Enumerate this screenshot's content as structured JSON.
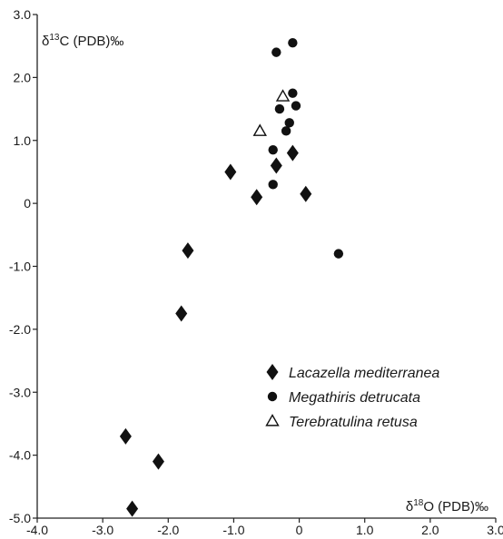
{
  "chart_data": {
    "type": "scatter",
    "xlabel": "δ¹⁸O (PDB)‰",
    "ylabel": "δ¹³C (PDB)‰",
    "xlim": [
      -4.0,
      3.0
    ],
    "ylim": [
      -5.0,
      3.0
    ],
    "xticks": [
      "-4.0",
      "-3.0",
      "-2.0",
      "-1.0",
      "0",
      "1.0",
      "2.0",
      "3.0"
    ],
    "yticks": [
      "-5.0",
      "-4.0",
      "-3.0",
      "-2.0",
      "-1.0",
      "0",
      "1.0",
      "2.0",
      "3.0"
    ],
    "grid": false,
    "legend_position": "bottom-right",
    "series": [
      {
        "name": "Lacazella mediterranea",
        "marker": "diamond-filled",
        "points": [
          [
            -1.05,
            0.5
          ],
          [
            -0.65,
            0.1
          ],
          [
            -0.35,
            0.6
          ],
          [
            -0.1,
            0.8
          ],
          [
            0.1,
            0.15
          ],
          [
            -1.7,
            -0.75
          ],
          [
            -1.8,
            -1.75
          ],
          [
            -2.65,
            -3.7
          ],
          [
            -2.15,
            -4.1
          ],
          [
            -2.55,
            -4.85
          ]
        ]
      },
      {
        "name": "Megathiris detrucata",
        "marker": "circle-filled",
        "points": [
          [
            -0.35,
            2.4
          ],
          [
            -0.1,
            2.55
          ],
          [
            -0.1,
            1.75
          ],
          [
            -0.3,
            1.5
          ],
          [
            -0.05,
            1.55
          ],
          [
            -0.15,
            1.28
          ],
          [
            -0.2,
            1.15
          ],
          [
            -0.4,
            0.85
          ],
          [
            -0.4,
            0.3
          ],
          [
            0.6,
            -0.8
          ]
        ]
      },
      {
        "name": "Terebratulina retusa",
        "marker": "triangle-open",
        "points": [
          [
            -0.25,
            1.7
          ],
          [
            -0.6,
            1.15
          ]
        ]
      }
    ]
  }
}
